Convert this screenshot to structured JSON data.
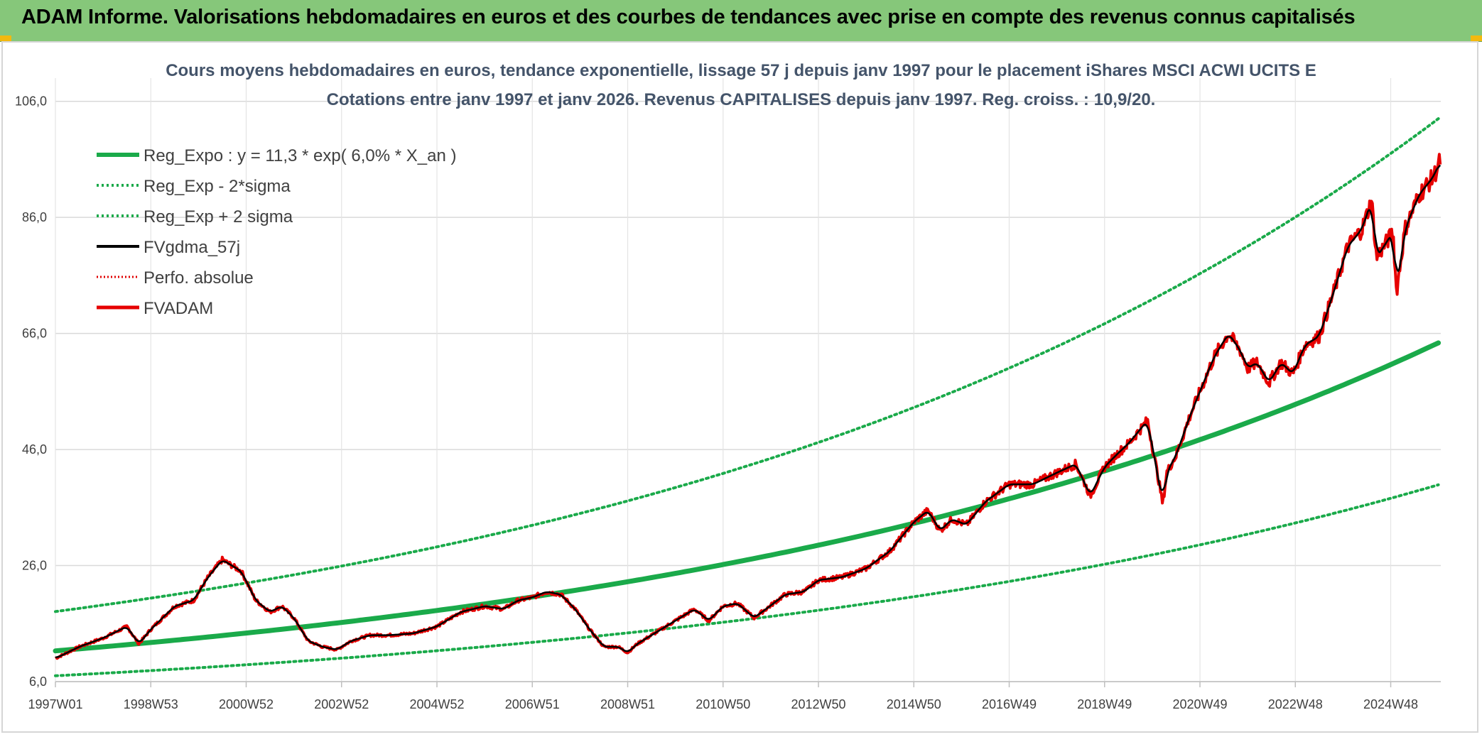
{
  "header": {
    "title": "ADAM Informe. Valorisations hebdomadaires en euros et des courbes de tendances avec prise en compte des revenus connus capitalisés"
  },
  "colors": {
    "header_bg": "#86c77a",
    "reg_expo": "#1aaa4a",
    "reg_band": "#1aaa4a",
    "fvgdma": "#000000",
    "perfo": "#e00000",
    "fvadam": "#e60000",
    "subtitle": "#44546a",
    "corner": "#f2b90f"
  },
  "chart_data": {
    "type": "line",
    "title": "Cours moyens hebdomadaires en euros, tendance exponentielle, lissage 57 j depuis janv 1997 pour le placement iShares MSCI ACWI UCITS E",
    "subtitle": "Cotations entre janv 1997 et janv 2026. Revenus CAPITALISES depuis janv 1997. Reg. croiss. : 10,9/20.",
    "xlabel": "",
    "ylabel": "",
    "x_range": [
      1997.0,
      2026.05
    ],
    "ylim": [
      6.0,
      110.0
    ],
    "y_ticks": [
      "106,0",
      "86,0",
      "66,0",
      "46,0",
      "26,0",
      "6,0"
    ],
    "y_tick_values": [
      106,
      86,
      66,
      46,
      26,
      6
    ],
    "x_ticks": [
      "1997W01",
      "1998W53",
      "2000W52",
      "2002W52",
      "2004W52",
      "2006W51",
      "2008W51",
      "2010W50",
      "2012W50",
      "2014W50",
      "2016W49",
      "2018W49",
      "2020W49",
      "2022W48",
      "2024W48"
    ],
    "x_tick_values": [
      1997.0,
      1999.0,
      2001.0,
      2003.0,
      2005.0,
      2007.0,
      2009.0,
      2011.0,
      2013.0,
      2015.0,
      2017.0,
      2019.0,
      2021.0,
      2023.0,
      2025.0
    ],
    "grid": true,
    "legend_position": "top-left",
    "regression": {
      "a": 11.3,
      "rate": 0.06,
      "sigma_factor_low": 0.62,
      "sigma_factor_high": 1.6
    },
    "series": [
      {
        "name": "Reg_Expo : y = 11,3 * exp( 6,0% *  X_an )",
        "style": "solid-thick"
      },
      {
        "name": "Reg_Exp - 2*sigma",
        "style": "dotted"
      },
      {
        "name": "Reg_Exp + 2 sigma",
        "style": "dotted"
      },
      {
        "name": "FVgdma_57j",
        "style": "solid"
      },
      {
        "name": "Perfo. absolue",
        "style": "dotted-red"
      },
      {
        "name": "FVADAM",
        "style": "solid-red",
        "x": [
          1997.0,
          1997.5,
          1998.0,
          1998.5,
          1998.75,
          1999.0,
          1999.5,
          1999.9,
          2000.2,
          2000.5,
          2000.9,
          2001.2,
          2001.5,
          2001.75,
          2002.0,
          2002.3,
          2002.6,
          2002.9,
          2003.2,
          2003.6,
          2004.0,
          2004.5,
          2005.0,
          2005.5,
          2006.0,
          2006.4,
          2006.7,
          2007.0,
          2007.3,
          2007.6,
          2007.9,
          2008.2,
          2008.5,
          2008.8,
          2009.0,
          2009.2,
          2009.6,
          2010.0,
          2010.4,
          2010.7,
          2011.0,
          2011.3,
          2011.65,
          2011.9,
          2012.3,
          2012.7,
          2013.0,
          2013.5,
          2014.0,
          2014.5,
          2015.0,
          2015.3,
          2015.55,
          2015.8,
          2016.1,
          2016.5,
          2017.0,
          2017.5,
          2018.0,
          2018.4,
          2018.7,
          2019.0,
          2019.3,
          2019.5,
          2019.9,
          2020.15,
          2020.22,
          2020.3,
          2020.5,
          2020.8,
          2021.0,
          2021.3,
          2021.6,
          2021.85,
          2022.0,
          2022.2,
          2022.45,
          2022.7,
          2022.95,
          2023.2,
          2023.5,
          2023.8,
          2024.1,
          2024.4,
          2024.6,
          2024.7,
          2025.05,
          2025.12,
          2025.3,
          2025.6,
          2025.9,
          2026.05
        ],
        "values": [
          10.0,
          12.0,
          13.5,
          15.5,
          12.5,
          15.0,
          19.0,
          20.0,
          24.0,
          27.0,
          25.0,
          20.0,
          18.0,
          19.0,
          17.0,
          13.0,
          12.0,
          11.5,
          13.0,
          14.0,
          14.0,
          14.3,
          15.5,
          18.0,
          19.0,
          18.5,
          20.0,
          20.5,
          21.5,
          21.0,
          18.5,
          15.0,
          12.0,
          12.0,
          11.0,
          12.5,
          14.5,
          16.5,
          18.5,
          16.5,
          19.0,
          19.5,
          17.0,
          18.5,
          21.0,
          21.5,
          23.5,
          24.0,
          25.5,
          28.5,
          33.5,
          35.5,
          32.0,
          34.0,
          33.0,
          37.0,
          40.0,
          40.0,
          42.0,
          43.5,
          38.0,
          43.0,
          45.5,
          47.0,
          51.0,
          40.0,
          36.5,
          42.0,
          45.0,
          52.0,
          56.0,
          62.0,
          66.0,
          63.0,
          60.0,
          61.0,
          57.5,
          61.0,
          59.0,
          64.0,
          65.5,
          73.0,
          81.0,
          84.0,
          89.0,
          79.0,
          83.5,
          73.0,
          84.0,
          90.0,
          93.0,
          96.0
        ]
      }
    ]
  },
  "legend": [
    {
      "label": "Reg_Expo : y = 11,3 * exp( 6,0% *  X_an )"
    },
    {
      "label": "Reg_Exp - 2*sigma"
    },
    {
      "label": "Reg_Exp + 2 sigma"
    },
    {
      "label": "FVgdma_57j"
    },
    {
      "label": "Perfo. absolue"
    },
    {
      "label": "FVADAM"
    }
  ]
}
